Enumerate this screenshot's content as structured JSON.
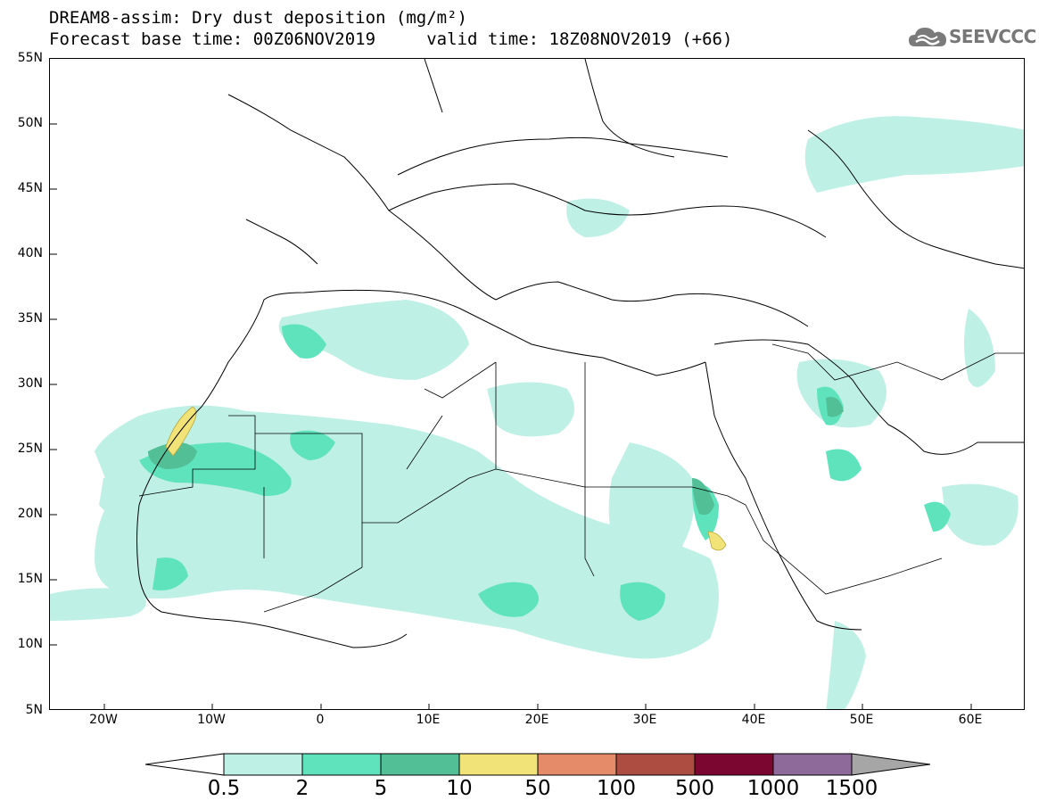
{
  "header": {
    "title_line1": "DREAM8-assim: Dry dust deposition (mg/m²)",
    "title_line2": "Forecast base time: 00Z06NOV2019     valid time: 18Z08NOV2019 (+66)",
    "logo_text": "SEEVCCC"
  },
  "map": {
    "lat_labels": [
      "55N",
      "50N",
      "45N",
      "40N",
      "35N",
      "30N",
      "25N",
      "20N",
      "15N",
      "10N",
      "5N"
    ],
    "lon_labels": [
      "20W",
      "10W",
      "0",
      "10E",
      "20E",
      "30E",
      "40E",
      "50E",
      "60E"
    ],
    "extent": {
      "lon_min": -25,
      "lon_max": 65,
      "lat_min": 5,
      "lat_max": 55
    }
  },
  "legend": {
    "thresholds": [
      "0.5",
      "2",
      "5",
      "10",
      "50",
      "100",
      "500",
      "1000",
      "1500"
    ],
    "colors": [
      "#bff0e6",
      "#5fe3bd",
      "#52bf97",
      "#f1e378",
      "#e58b69",
      "#ad4c40",
      "#7b0730",
      "#8e6a9b",
      "#a6a6a6"
    ],
    "min_arrow_color": "#ffffff"
  }
}
